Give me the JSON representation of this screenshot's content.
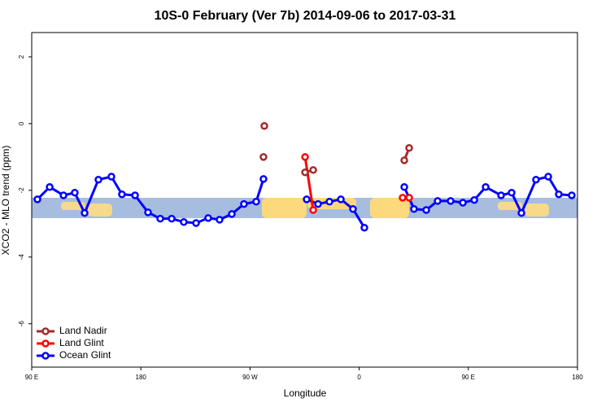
{
  "chart_data": {
    "type": "line",
    "title": "10S-0 February (Ver 7b)   2014-09-06 to 2017-03-31",
    "x_label": "Longitude",
    "y_label": "XCO2 - MLO trend (ppm)",
    "xlim": [
      90,
      540
    ],
    "ylim": [
      -7.3,
      2.73
    ],
    "xticks": [
      {
        "value": 90,
        "label": "90 E"
      },
      180,
      {
        "value": 270,
        "label": "90 W"
      },
      {
        "value": 360,
        "label": "0"
      },
      {
        "value": 450,
        "label": "90 E"
      },
      {
        "value": 540,
        "label": "180"
      }
    ],
    "yticks": [
      2,
      0,
      -2,
      -4,
      -6
    ],
    "legend": "bottom-left",
    "series": [
      {
        "name": "Ocean Glint",
        "color": "#0000ff",
        "x": [
          94.7,
          104.8,
          116.2,
          125.5,
          133.6,
          145.0,
          155.7,
          164.4,
          175.2,
          185.9,
          196.0,
          205.4,
          215.4,
          225.5,
          235.5,
          244.9,
          255.0,
          265.0,
          275.1,
          281.1,
          null,
          316.7,
          326.1,
          335.5,
          344.9,
          354.9,
          364.3,
          null,
          397.2,
          405.2,
          415.3,
          424.7,
          435.4,
          445.5,
          454.9,
          464.3,
          477.0,
          485.7,
          493.8,
          505.8,
          515.9,
          524.6,
          535.3
        ],
        "values": [
          -2.27,
          -1.9,
          -2.15,
          -2.07,
          -2.68,
          -1.68,
          -1.59,
          -2.12,
          -2.15,
          -2.66,
          -2.85,
          -2.85,
          -2.95,
          -2.98,
          -2.83,
          -2.88,
          -2.71,
          -2.41,
          -2.34,
          -1.66,
          null,
          -2.27,
          -2.41,
          -2.34,
          -2.27,
          -2.56,
          -3.12,
          null,
          -1.9,
          -2.56,
          -2.59,
          -2.32,
          -2.32,
          -2.37,
          -2.29,
          -1.9,
          -2.15,
          -2.07,
          -2.68,
          -1.68,
          -1.59,
          -2.12,
          -2.15
        ]
      },
      {
        "name": "Land Glint",
        "color": "#ff0000",
        "x": [
          315.4,
          322.1,
          null,
          395.8,
          401.2
        ],
        "values": [
          -1.0,
          -2.59,
          null,
          -2.22,
          -2.22
        ]
      },
      {
        "name": "Land Nadir",
        "color": "#a52a2a",
        "x": [
          281.8,
          null,
          281.1,
          null,
          315.4,
          322.1,
          null,
          397.2,
          401.2
        ],
        "values": [
          -0.07,
          null,
          -1.0,
          null,
          -1.46,
          -1.39,
          null,
          -1.1,
          -0.73
        ]
      }
    ]
  }
}
